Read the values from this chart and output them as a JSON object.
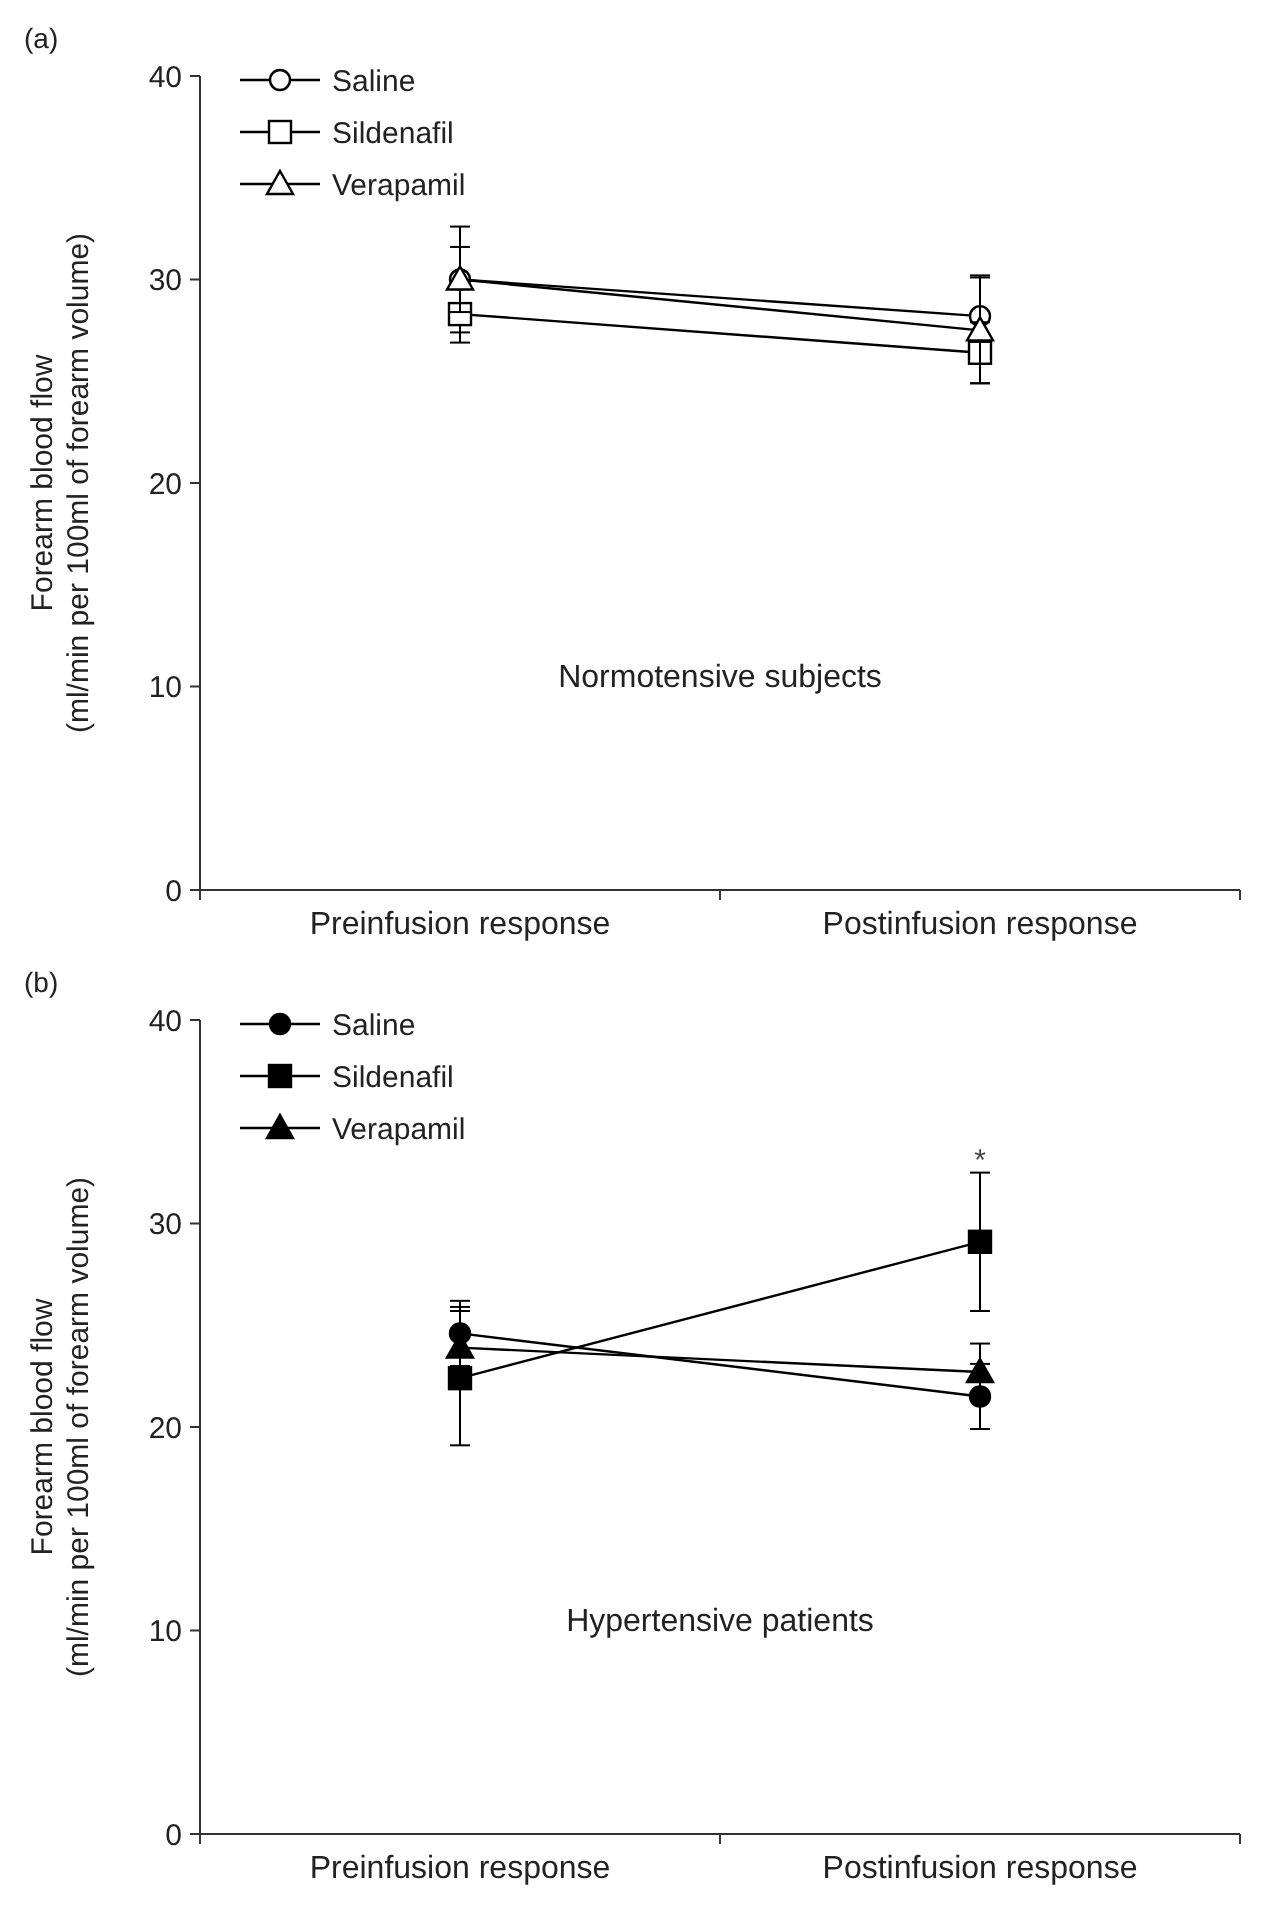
{
  "chart_data": [
    {
      "type": "line",
      "title": "(a)",
      "ylabel": "Forearm blood flow\n(ml/min per 100ml of forearm volume)",
      "categories": [
        "Preinfusion response",
        "Postinfusion response"
      ],
      "ylim": [
        0,
        40
      ],
      "yticks": [
        0,
        10,
        20,
        30,
        40
      ],
      "grid": false,
      "legend": "top left",
      "annotations": [
        "Normotensive subjects"
      ],
      "series": [
        {
          "name": "Saline",
          "color": "#000000",
          "marker": "circle",
          "values": [
            30.0,
            28.2
          ],
          "errors": [
            2.6,
            2.0
          ]
        },
        {
          "name": "Sildenafil",
          "color": "#000000",
          "marker": "square",
          "values": [
            28.3,
            26.4
          ],
          "errors": [
            1.4,
            1.5
          ]
        },
        {
          "name": "Verapamil",
          "color": "#000000",
          "marker": "triangle",
          "values": [
            30.0,
            27.5
          ],
          "errors": [
            1.6,
            2.6
          ]
        }
      ]
    },
    {
      "type": "line",
      "title": "(b)",
      "ylabel": "Forearm blood flow\n(ml/min per 100ml of forearm volume)",
      "categories": [
        "Preinfusion response",
        "Postinfusion response"
      ],
      "ylim": [
        0,
        40
      ],
      "yticks": [
        0,
        10,
        20,
        30,
        40
      ],
      "grid": false,
      "legend": "top left",
      "annotations": [
        "Hypertensive patients",
        "*"
      ],
      "series": [
        {
          "name": "Saline",
          "color": "#000000",
          "marker": "circle",
          "values": [
            24.6,
            21.5
          ],
          "errors": [
            1.6,
            1.6
          ]
        },
        {
          "name": "Sildenafil",
          "color": "#000000",
          "marker": "square",
          "values": [
            22.4,
            29.1
          ],
          "errors": [
            3.3,
            3.4
          ]
        },
        {
          "name": "Verapamil",
          "color": "#000000",
          "marker": "triangle",
          "values": [
            23.9,
            22.7
          ],
          "errors": [
            2.0,
            1.4
          ]
        }
      ]
    }
  ]
}
